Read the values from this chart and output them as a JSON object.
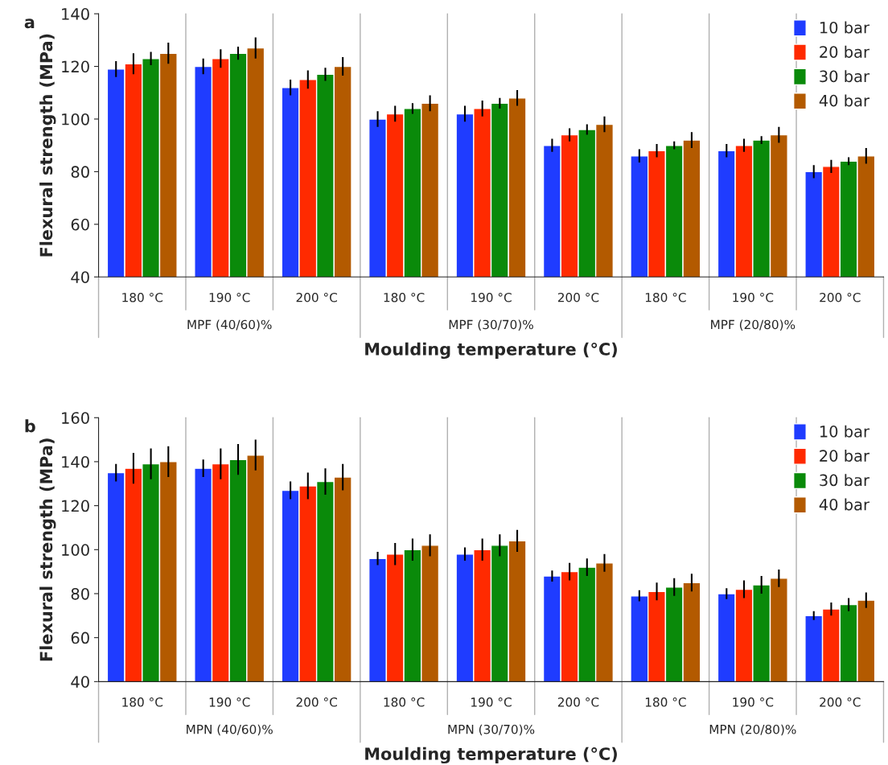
{
  "chart_data": [
    {
      "type": "bar",
      "title": "a",
      "xlabel": "Moulding temperature (°C)",
      "ylabel": "Flexural strength (MPa)",
      "categories": [
        "180 °C",
        "190 °C",
        "200 °C",
        "180 °C",
        "190 °C",
        "200 °C",
        "180 °C",
        "190 °C",
        "200 °C"
      ],
      "annotations": [
        "MPF (40/60)%",
        "MPF (30/70)%",
        "MPF (20/80)%"
      ],
      "series": [
        {
          "name": "10 bar",
          "color": "#1f3cff",
          "values": [
            119,
            120,
            112,
            100,
            102,
            90,
            86,
            88,
            80
          ],
          "errors": [
            3,
            3,
            3,
            3,
            3,
            2.5,
            2.5,
            2.5,
            2.5
          ]
        },
        {
          "name": "20 bar",
          "color": "#ff2a00",
          "values": [
            121,
            123,
            115,
            102,
            104,
            94,
            88,
            90,
            82
          ],
          "errors": [
            4,
            3.5,
            3.5,
            3,
            3,
            2.5,
            2.5,
            2.5,
            2.5
          ]
        },
        {
          "name": "30 bar",
          "color": "#0a8a0a",
          "values": [
            123,
            125,
            117,
            104,
            106,
            96,
            90,
            92,
            84
          ],
          "errors": [
            2.5,
            2.5,
            2.5,
            2,
            2,
            2,
            1.5,
            1.5,
            1.5
          ]
        },
        {
          "name": "40 bar",
          "color": "#b35a00",
          "values": [
            125,
            127,
            120,
            106,
            108,
            98,
            92,
            94,
            86
          ],
          "errors": [
            4,
            4,
            3.5,
            3,
            3,
            3,
            3,
            3,
            3
          ]
        }
      ],
      "ylim": [
        40,
        140
      ],
      "yticks": [
        40,
        60,
        80,
        100,
        120,
        140
      ],
      "legend": "top right",
      "grid": false
    },
    {
      "type": "bar",
      "title": "b",
      "xlabel": "Moulding temperature (°C)",
      "ylabel": "Flexural strength (MPa)",
      "categories": [
        "180 °C",
        "190 °C",
        "200 °C",
        "180 °C",
        "190 °C",
        "200 °C",
        "180 °C",
        "190 °C",
        "200 °C"
      ],
      "annotations": [
        "MPN (40/60)%",
        "MPN (30/70)%",
        "MPN (20/80)%"
      ],
      "series": [
        {
          "name": "10 bar",
          "color": "#1f3cff",
          "values": [
            135,
            137,
            127,
            96,
            98,
            88,
            79,
            80,
            70
          ],
          "errors": [
            4,
            4,
            4,
            3,
            3,
            2.5,
            2.5,
            2.5,
            2
          ]
        },
        {
          "name": "20 bar",
          "color": "#ff2a00",
          "values": [
            137,
            139,
            129,
            98,
            100,
            90,
            81,
            82,
            73
          ],
          "errors": [
            7,
            7,
            6,
            5,
            5,
            4,
            4,
            4,
            3
          ]
        },
        {
          "name": "30 bar",
          "color": "#0a8a0a",
          "values": [
            139,
            141,
            131,
            100,
            102,
            92,
            83,
            84,
            75
          ],
          "errors": [
            7,
            7,
            6,
            5,
            5,
            4,
            4,
            4,
            3
          ]
        },
        {
          "name": "40 bar",
          "color": "#b35a00",
          "values": [
            140,
            143,
            133,
            102,
            104,
            94,
            85,
            87,
            77
          ],
          "errors": [
            7,
            7,
            6,
            5,
            5,
            4,
            4,
            4,
            3.5
          ]
        }
      ],
      "ylim": [
        40,
        160
      ],
      "yticks": [
        40,
        60,
        80,
        100,
        120,
        140,
        160
      ],
      "legend": "top right",
      "grid": false
    }
  ]
}
